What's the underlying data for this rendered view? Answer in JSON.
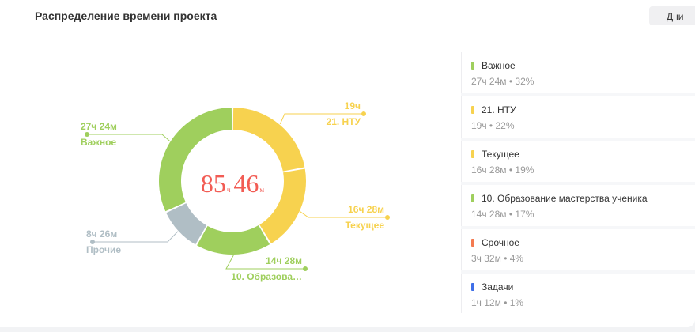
{
  "card": {
    "title": "Распределение времени проекта",
    "period_button": "Дни"
  },
  "center": {
    "hours": "85",
    "hours_unit": "ч",
    "minutes": "46",
    "minutes_unit": "м",
    "color": "#f25c54"
  },
  "chart_data": {
    "type": "pie",
    "donut": true,
    "total": "85ч 46м",
    "slices": [
      {
        "name": "21. НТУ",
        "value_label": "19ч",
        "minutes": 1140,
        "percent": 22,
        "color": "#f7d24f"
      },
      {
        "name": "Текущее",
        "value_label": "16ч 28м",
        "minutes": 988,
        "percent": 19,
        "color": "#f7d24f"
      },
      {
        "name": "10. Образова…",
        "value_label": "14ч 28м",
        "minutes": 868,
        "percent": 17,
        "color": "#9fcf5d"
      },
      {
        "name": "Прочие",
        "value_label": "8ч 26м",
        "minutes": 506,
        "percent": 10,
        "color": "#b0bec5"
      },
      {
        "name": "Важное",
        "value_label": "27ч 24м",
        "minutes": 1644,
        "percent": 32,
        "color": "#9fcf5d"
      }
    ]
  },
  "legend": {
    "items": [
      {
        "name": "Важное",
        "meta": "27ч 24м • 32%",
        "color": "#9fcf5d"
      },
      {
        "name": "21. НТУ",
        "meta": "19ч • 22%",
        "color": "#f7d24f"
      },
      {
        "name": "Текущее",
        "meta": "16ч 28м • 19%",
        "color": "#f7d24f"
      },
      {
        "name": "10. Образование мастерства ученика",
        "meta": "14ч 28м • 17%",
        "color": "#9fcf5d"
      },
      {
        "name": "Срочное",
        "meta": "3ч 32м • 4%",
        "color": "#f47a50"
      },
      {
        "name": "Задачи",
        "meta": "1ч 12м • 1%",
        "color": "#3f6fe8"
      }
    ]
  }
}
